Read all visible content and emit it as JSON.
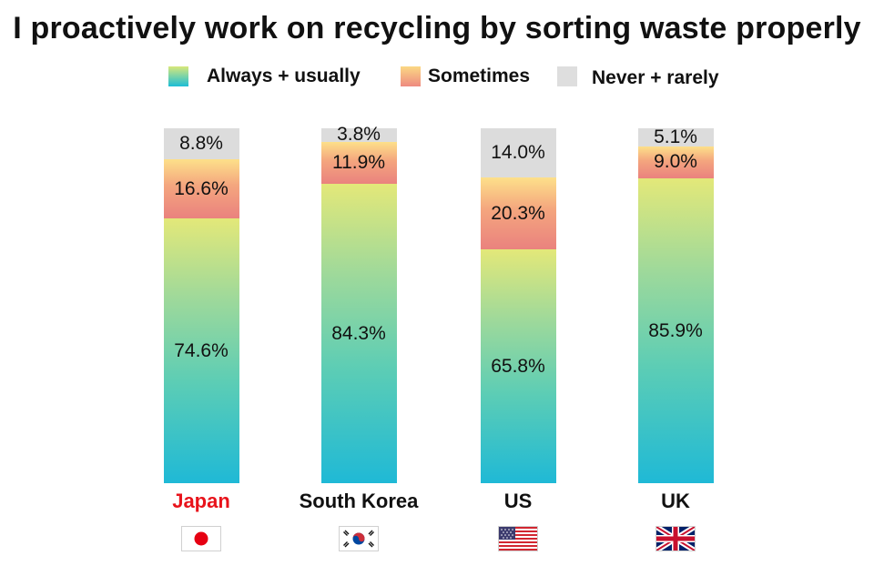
{
  "chart_data": {
    "type": "bar",
    "stacked": true,
    "title": "I proactively work on recycling by sorting waste properly",
    "categories": [
      "Japan",
      "South Korea",
      "US",
      "UK"
    ],
    "series": [
      {
        "name": "Always + usually",
        "values": [
          74.6,
          84.3,
          65.8,
          85.9
        ],
        "labels": [
          "74.6%",
          "84.3%",
          "65.8%",
          "85.9%"
        ]
      },
      {
        "name": "Sometimes",
        "values": [
          16.6,
          11.9,
          20.3,
          9.0
        ],
        "labels": [
          "16.6%",
          "11.9%",
          "20.3%",
          "9.0%"
        ]
      },
      {
        "name": "Never + rarely",
        "values": [
          8.8,
          3.8,
          14.0,
          5.1
        ],
        "labels": [
          "8.8%",
          "3.8%",
          "14.0%",
          "5.1%"
        ]
      }
    ],
    "ylim": [
      0,
      100
    ],
    "legend": "top",
    "grid": false
  },
  "colors": {
    "always_top": "#e3e879",
    "always_bottom": "#1fb9d6",
    "sometimes_top": "#fde08a",
    "sometimes_bottom": "#ea827e",
    "never": "#dcdcdc",
    "highlight_category": "#e8131b"
  },
  "highlight_category": "Japan",
  "flags": [
    "japan-flag-icon",
    "south-korea-flag-icon",
    "us-flag-icon",
    "uk-flag-icon"
  ]
}
